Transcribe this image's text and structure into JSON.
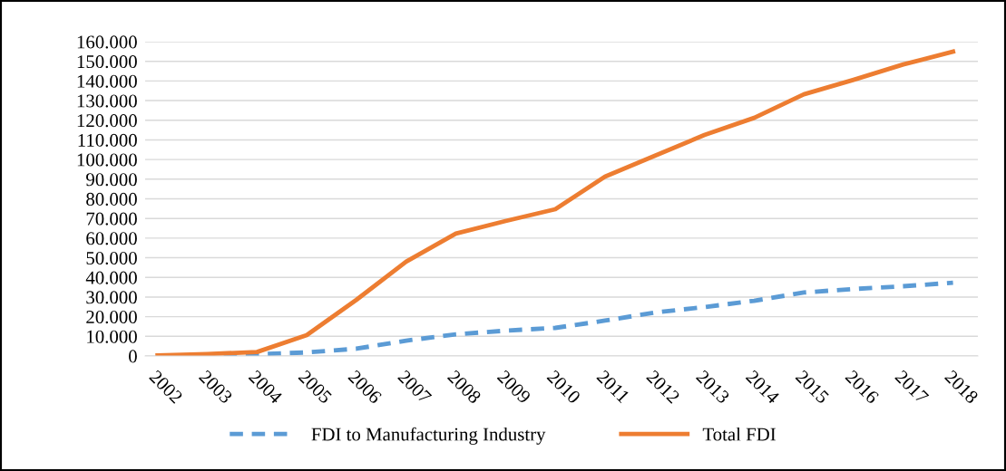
{
  "chart_data": {
    "type": "line",
    "categories": [
      "2002",
      "2003",
      "2004",
      "2005",
      "2006",
      "2007",
      "2008",
      "2009",
      "2010",
      "2011",
      "2012",
      "2013",
      "2014",
      "2015",
      "2016",
      "2017",
      "2018"
    ],
    "series": [
      {
        "name": "FDI to Manufacturing Industry",
        "color": "#5b9bd5",
        "line_style": "dashed",
        "values": [
          0,
          0,
          900,
          1800,
          3700,
          7800,
          11000,
          12900,
          14300,
          18000,
          22100,
          24900,
          28100,
          32300,
          34100,
          35500,
          37300
        ]
      },
      {
        "name": "Total FDI",
        "color": "#ed7d31",
        "line_style": "solid",
        "values": [
          300,
          1000,
          2000,
          10600,
          28600,
          48000,
          62300,
          68700,
          74700,
          91300,
          101900,
          112500,
          121200,
          133200,
          140600,
          148400,
          154900
        ]
      }
    ],
    "ylim": [
      0,
      160000
    ],
    "yticks": [
      0,
      {
        "value": 10000,
        "label": "10.000"
      },
      {
        "value": 20000,
        "label": "20.000"
      },
      {
        "value": 30000,
        "label": "30.000"
      },
      {
        "value": 40000,
        "label": "40.000"
      },
      {
        "value": 50000,
        "label": "50.000"
      },
      {
        "value": 60000,
        "label": "60.000"
      },
      {
        "value": 70000,
        "label": "70.000"
      },
      {
        "value": 80000,
        "label": "80.000"
      },
      {
        "value": 90000,
        "label": "90.000"
      },
      {
        "value": 100000,
        "label": "100.000"
      },
      {
        "value": 110000,
        "label": "110.000"
      },
      {
        "value": 120000,
        "label": "120.000"
      },
      {
        "value": 130000,
        "label": "130.000"
      },
      {
        "value": 140000,
        "label": "140.000"
      },
      {
        "value": 150000,
        "label": "150.000"
      },
      {
        "value": 160000,
        "label": "160.000"
      }
    ],
    "grid": "y",
    "legend": "bottom",
    "marker": "none"
  }
}
